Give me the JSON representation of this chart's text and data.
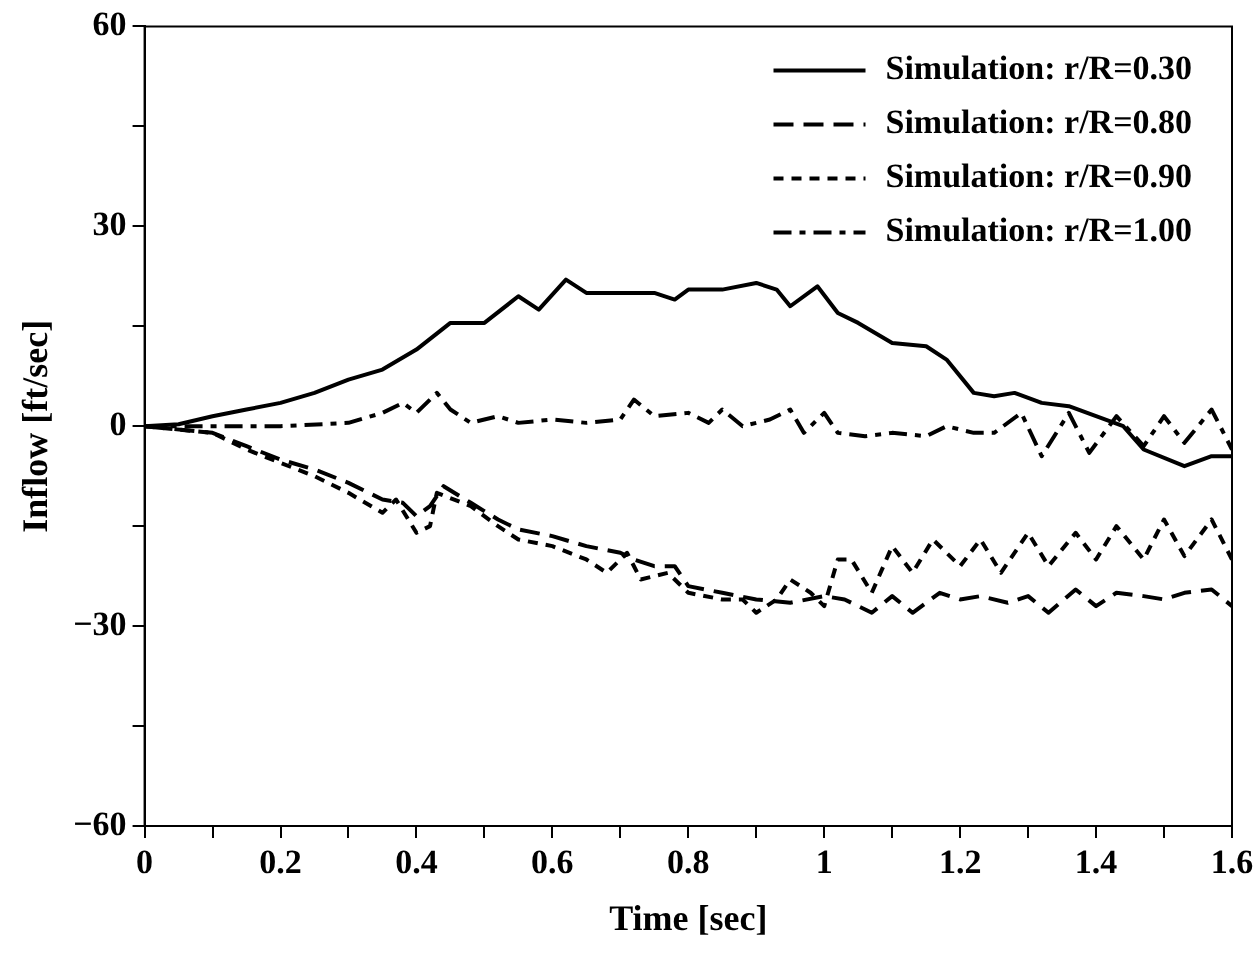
{
  "chart_data": {
    "type": "line",
    "xlabel": "Time [sec]",
    "ylabel": "Inflow [ft/sec]",
    "legend": "top right",
    "grid": false,
    "marker": "none",
    "xlim": [
      0,
      1.6
    ],
    "ylim": [
      -60,
      60
    ],
    "xticks": [
      0,
      {
        "value": 0.1,
        "label": null
      },
      0.2,
      {
        "value": 0.3,
        "label": null
      },
      0.4,
      {
        "value": 0.5,
        "label": null
      },
      0.6,
      {
        "value": 0.7,
        "label": null
      },
      0.8,
      {
        "value": 0.9,
        "label": null
      },
      1,
      {
        "value": 1.1,
        "label": null
      },
      1.2,
      {
        "value": 1.3,
        "label": null
      },
      1.4,
      {
        "value": 1.5,
        "label": null
      },
      1.6
    ],
    "yticks": [
      {
        "value": -60,
        "label": "−60"
      },
      {
        "value": -45,
        "label": null
      },
      {
        "value": -30,
        "label": "−30"
      },
      {
        "value": -15,
        "label": null
      },
      0,
      {
        "value": 15,
        "label": null
      },
      30,
      {
        "value": 45,
        "label": null
      },
      60
    ],
    "series": [
      {
        "name": "Simulation: r/R=0.30",
        "color": "#000000",
        "line_style": "solid",
        "x": [
          0,
          0.05,
          0.1,
          0.15,
          0.2,
          0.25,
          0.3,
          0.35,
          0.4,
          0.45,
          0.5,
          0.55,
          0.58,
          0.62,
          0.65,
          0.7,
          0.75,
          0.78,
          0.8,
          0.85,
          0.9,
          0.93,
          0.95,
          0.99,
          1.02,
          1.05,
          1.1,
          1.15,
          1.18,
          1.22,
          1.25,
          1.28,
          1.32,
          1.36,
          1.4,
          1.44,
          1.47,
          1.53,
          1.57,
          1.6
        ],
        "values": [
          0,
          0.3,
          1.5,
          2.5,
          3.5,
          5,
          7,
          8.5,
          11.5,
          15.5,
          15.5,
          19.5,
          17.5,
          22,
          20,
          20,
          20,
          19,
          20.5,
          20.5,
          21.5,
          20.5,
          18,
          21,
          17,
          15.5,
          12.5,
          12,
          10,
          5,
          4.5,
          5,
          3.5,
          3,
          1.5,
          0,
          -3.5,
          -6,
          -4.5,
          -4.5
        ]
      },
      {
        "name": "Simulation: r/R=0.80",
        "color": "#000000",
        "line_style": "dashed",
        "x": [
          0,
          0.1,
          0.15,
          0.2,
          0.25,
          0.3,
          0.35,
          0.38,
          0.4,
          0.42,
          0.44,
          0.48,
          0.52,
          0.55,
          0.6,
          0.65,
          0.7,
          0.72,
          0.75,
          0.78,
          0.8,
          0.85,
          0.9,
          0.95,
          1,
          1.03,
          1.07,
          1.1,
          1.13,
          1.17,
          1.2,
          1.23,
          1.27,
          1.3,
          1.33,
          1.37,
          1.4,
          1.43,
          1.47,
          1.5,
          1.53,
          1.57,
          1.6
        ],
        "values": [
          0,
          -1,
          -3,
          -5,
          -6.5,
          -8.5,
          -11,
          -11.5,
          -13.5,
          -12,
          -9,
          -11.5,
          -14,
          -15.5,
          -16.5,
          -18,
          -19,
          -20,
          -21,
          -21,
          -24,
          -25,
          -26,
          -26.5,
          -25.5,
          -26,
          -28,
          -25.5,
          -28,
          -25,
          -26,
          -25.5,
          -26.5,
          -25.5,
          -28,
          -24.5,
          -27,
          -25,
          -25.5,
          -26,
          -25,
          -24.5,
          -27
        ]
      },
      {
        "name": "Simulation: r/R=0.90",
        "color": "#000000",
        "line_style": "dotted",
        "x": [
          0,
          0.1,
          0.15,
          0.2,
          0.25,
          0.3,
          0.35,
          0.37,
          0.4,
          0.42,
          0.43,
          0.48,
          0.52,
          0.55,
          0.6,
          0.65,
          0.68,
          0.71,
          0.73,
          0.77,
          0.8,
          0.85,
          0.88,
          0.9,
          0.93,
          0.95,
          0.98,
          1,
          1.02,
          1.04,
          1.07,
          1.1,
          1.13,
          1.16,
          1.2,
          1.23,
          1.26,
          1.3,
          1.33,
          1.37,
          1.4,
          1.43,
          1.47,
          1.5,
          1.53,
          1.57,
          1.6
        ],
        "values": [
          0,
          -1,
          -3.5,
          -5.5,
          -7.5,
          -10,
          -13,
          -11,
          -16,
          -15,
          -10,
          -12,
          -15,
          -17,
          -18,
          -20,
          -22,
          -19,
          -23,
          -22,
          -25,
          -26,
          -26,
          -28,
          -26,
          -23,
          -25,
          -27,
          -20,
          -20,
          -25,
          -18,
          -22,
          -17,
          -21,
          -17,
          -22,
          -16,
          -21,
          -16,
          -20,
          -15,
          -20,
          -14,
          -19.5,
          -14,
          -20
        ]
      },
      {
        "name": "Simulation: r/R=1.00",
        "color": "#000000",
        "line_style": "dashdot",
        "x": [
          0,
          0.1,
          0.2,
          0.3,
          0.35,
          0.38,
          0.4,
          0.43,
          0.45,
          0.48,
          0.52,
          0.55,
          0.6,
          0.65,
          0.7,
          0.72,
          0.75,
          0.8,
          0.83,
          0.85,
          0.88,
          0.92,
          0.95,
          0.97,
          1,
          1.02,
          1.06,
          1.1,
          1.15,
          1.18,
          1.22,
          1.25,
          1.29,
          1.32,
          1.36,
          1.39,
          1.43,
          1.47,
          1.5,
          1.53,
          1.57,
          1.6
        ],
        "values": [
          0,
          0,
          0,
          0.5,
          2,
          3.5,
          2,
          5,
          2.5,
          0.5,
          1.5,
          0.5,
          1,
          0.5,
          1,
          4,
          1.5,
          2,
          0.5,
          2.5,
          0,
          1,
          2.5,
          -1,
          2,
          -1,
          -1.5,
          -1,
          -1.5,
          0,
          -1,
          -1,
          2,
          -4.5,
          2,
          -4,
          1.5,
          -3,
          1.5,
          -2.5,
          2.5,
          -3.5
        ]
      }
    ]
  }
}
